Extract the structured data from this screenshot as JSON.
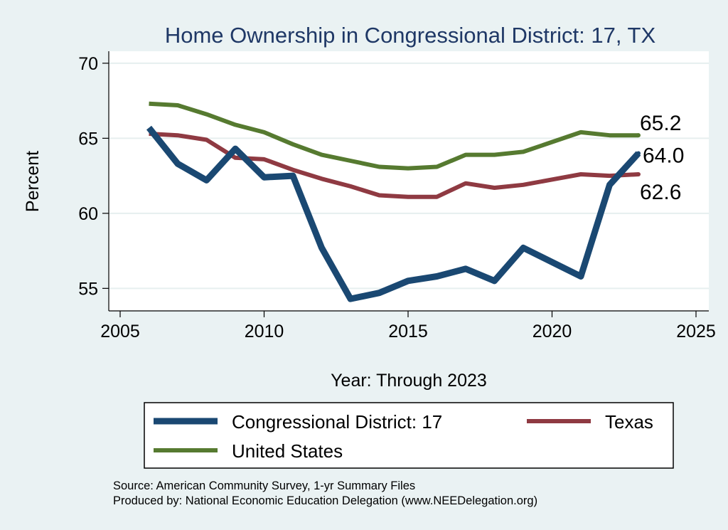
{
  "chart_data": {
    "type": "line",
    "title": "Home Ownership in Congressional District:  17, TX",
    "xlabel": "Year: Through 2023",
    "ylabel": "Percent",
    "xlim": [
      2005,
      2025
    ],
    "ylim": [
      53.5,
      70.8
    ],
    "xticks": [
      2005,
      2010,
      2015,
      2020,
      2025
    ],
    "yticks": [
      55,
      60,
      65,
      70
    ],
    "grid": true,
    "legend_position": "bottom",
    "series": [
      {
        "name": "Congressional District:  17",
        "color": "#1a4872",
        "x": [
          2006,
          2007,
          2008,
          2009,
          2010,
          2011,
          2012,
          2013,
          2014,
          2015,
          2016,
          2017,
          2018,
          2019,
          2021,
          2022,
          2023
        ],
        "values": [
          65.7,
          63.3,
          62.2,
          64.3,
          62.4,
          62.5,
          57.7,
          54.3,
          54.7,
          55.5,
          55.8,
          56.3,
          55.5,
          57.7,
          55.8,
          61.9,
          64.0
        ],
        "end_label": "64.0"
      },
      {
        "name": "Texas",
        "color": "#8f3a42",
        "x": [
          2006,
          2007,
          2008,
          2009,
          2010,
          2011,
          2012,
          2013,
          2014,
          2015,
          2016,
          2017,
          2018,
          2019,
          2021,
          2022,
          2023
        ],
        "values": [
          65.3,
          65.2,
          64.9,
          63.7,
          63.6,
          62.9,
          62.3,
          61.8,
          61.2,
          61.1,
          61.1,
          62.0,
          61.7,
          61.9,
          62.6,
          62.5,
          62.6
        ],
        "end_label": "62.6"
      },
      {
        "name": "United States",
        "color": "#567a30",
        "x": [
          2006,
          2007,
          2008,
          2009,
          2010,
          2011,
          2012,
          2013,
          2014,
          2015,
          2016,
          2017,
          2018,
          2019,
          2021,
          2022,
          2023
        ],
        "values": [
          67.3,
          67.2,
          66.6,
          65.9,
          65.4,
          64.6,
          63.9,
          63.5,
          63.1,
          63.0,
          63.1,
          63.9,
          63.9,
          64.1,
          65.4,
          65.2,
          65.2
        ],
        "end_label": "65.2"
      }
    ],
    "source_lines": [
      "Source: American Community Survey, 1-yr Summary Files",
      "Produced by: National Economic Education Delegation (www.NEEDelegation.org)"
    ]
  }
}
